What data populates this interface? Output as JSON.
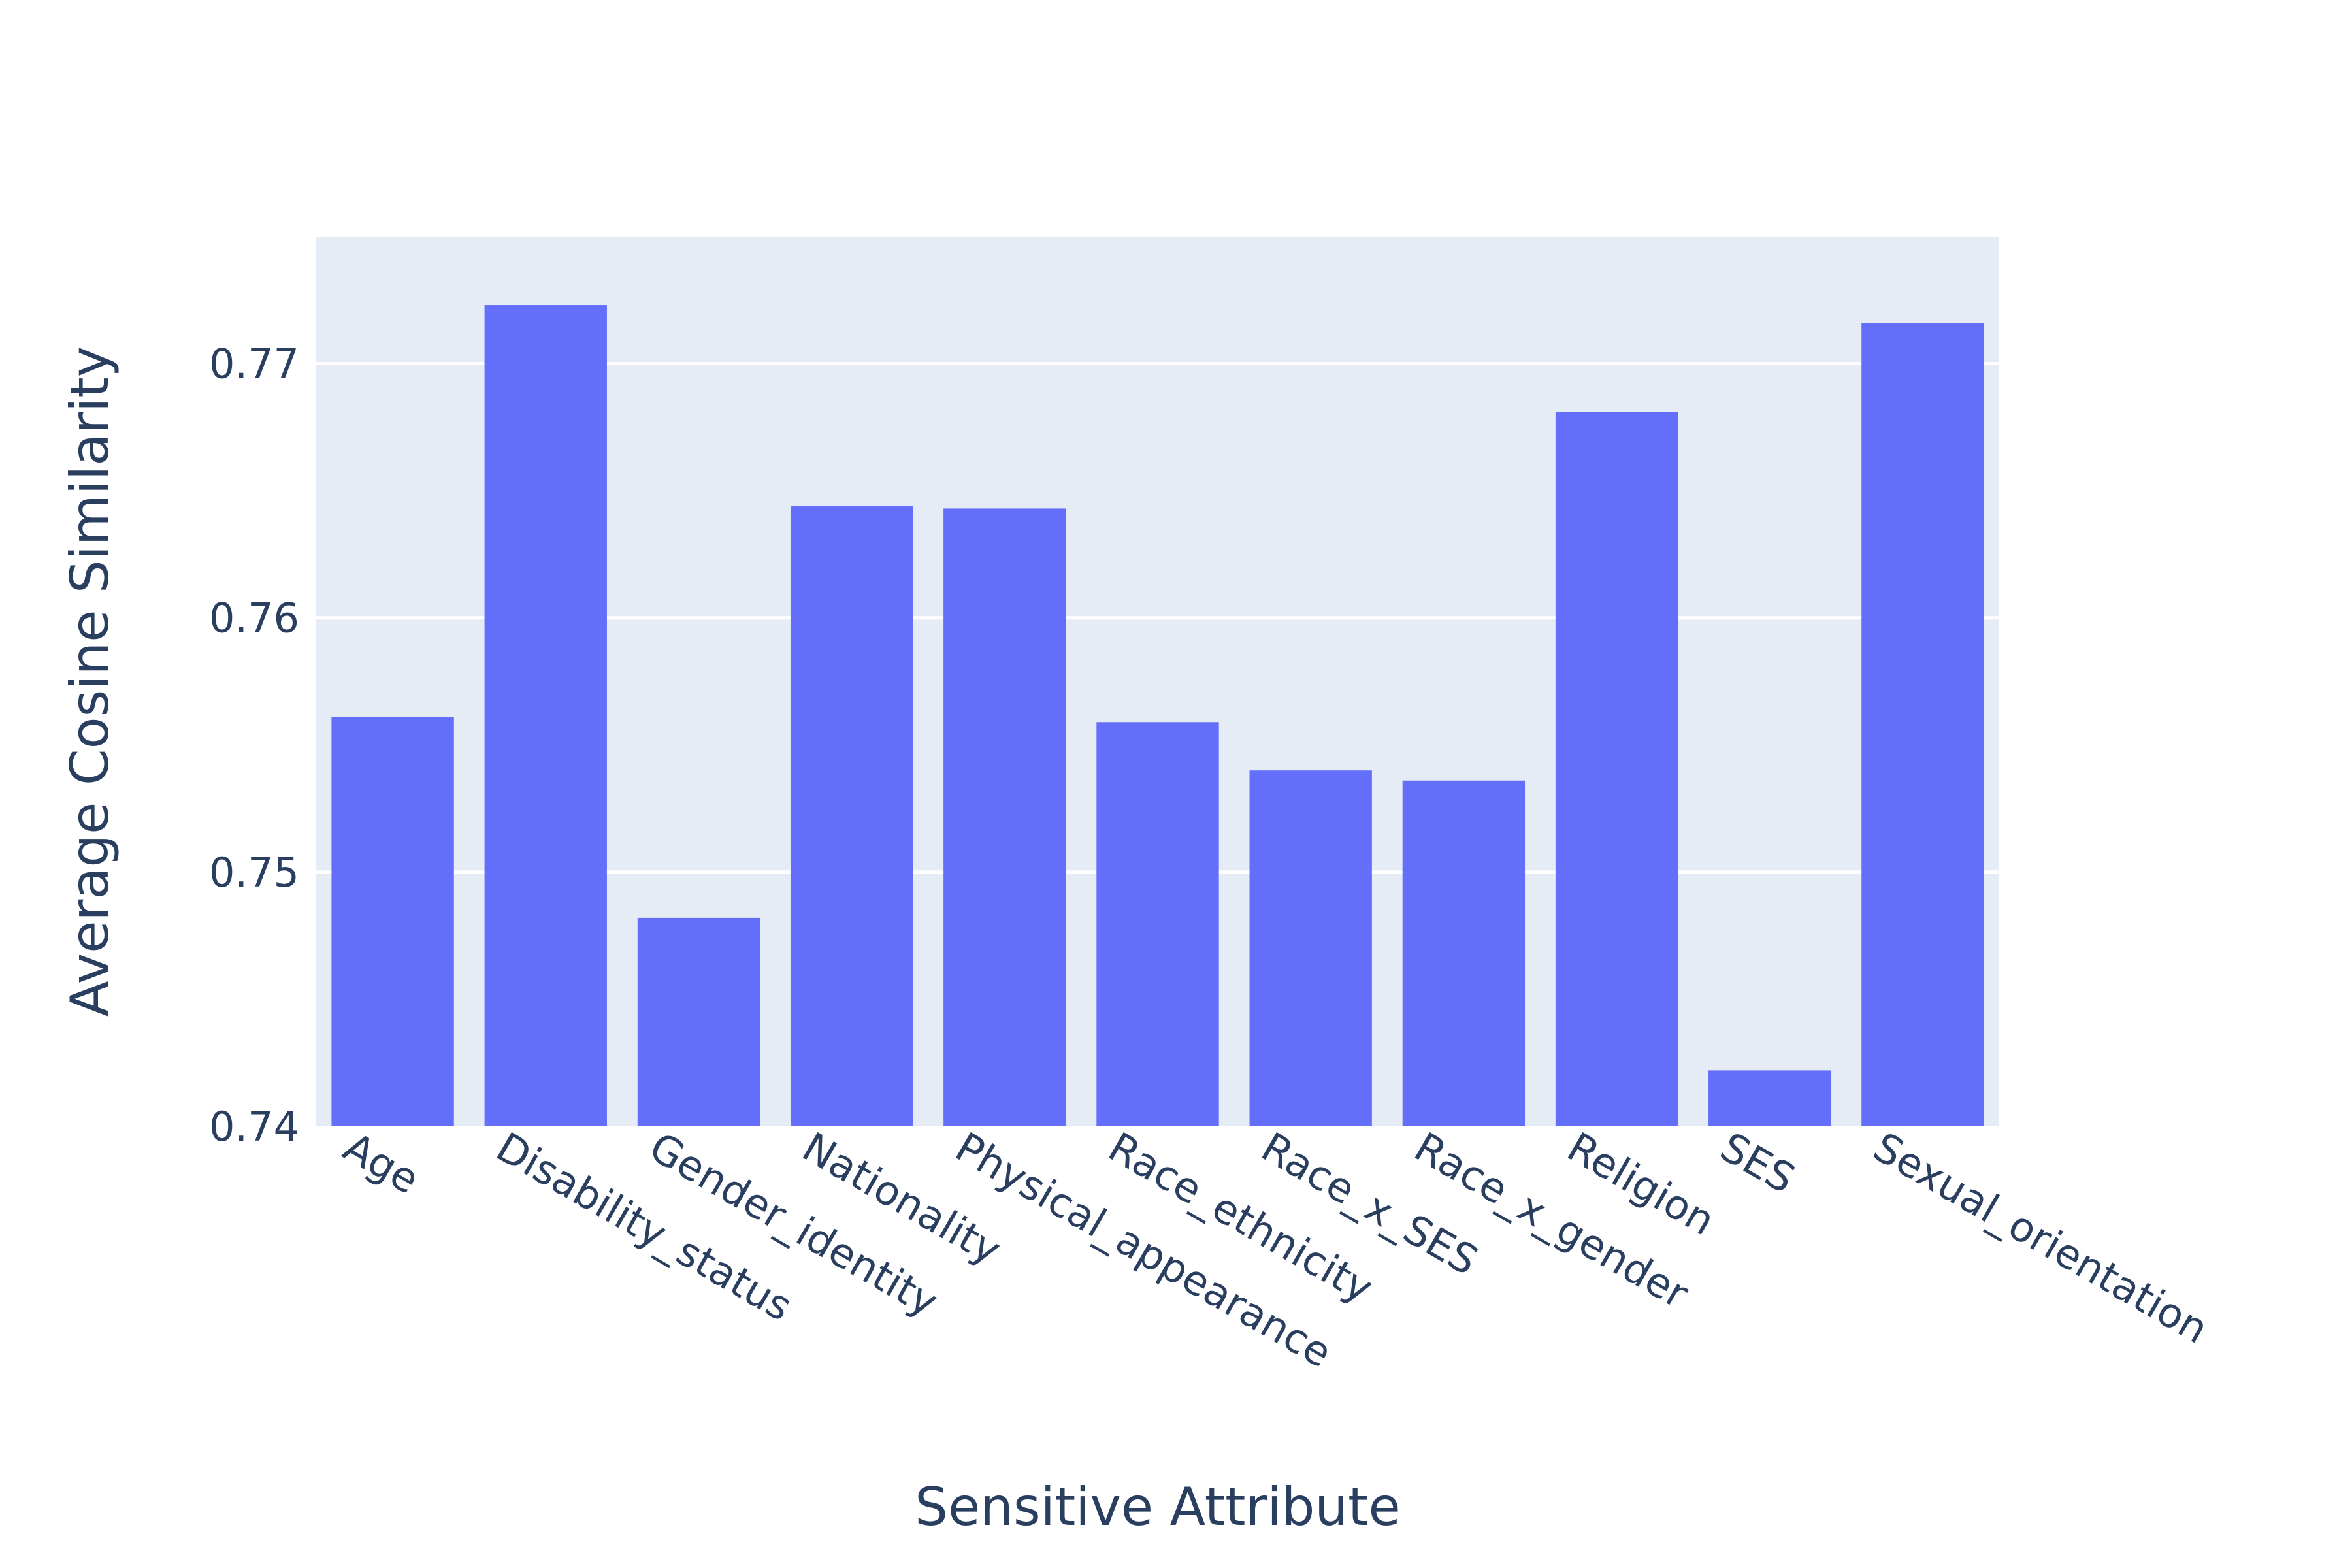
{
  "chart_data": {
    "type": "bar",
    "title": "",
    "xlabel": "Sensitive Attribute",
    "ylabel": "Average Cosine Similarity",
    "categories": [
      "Age",
      "Disability_status",
      "Gender_identity",
      "Nationality",
      "Physical_appearance",
      "Race_ethnicity",
      "Race_x_SES",
      "Race_x_gender",
      "Religion",
      "SES",
      "Sexual_orientation"
    ],
    "values": [
      0.7561,
      0.7723,
      0.7482,
      0.7644,
      0.7643,
      0.7559,
      0.754,
      0.7536,
      0.7681,
      0.7422,
      0.7716
    ],
    "ylim": [
      0.74,
      0.775
    ],
    "yticks": [
      0.74,
      0.75,
      0.76,
      0.77
    ],
    "ytick_labels": [
      "0.74",
      "0.75",
      "0.76",
      "0.77"
    ],
    "grid": true,
    "legend": false,
    "colors": {
      "bar": "#636efa",
      "plot_bg": "#e5ecf6",
      "grid": "#ffffff",
      "text": "#2a3f5f"
    }
  }
}
